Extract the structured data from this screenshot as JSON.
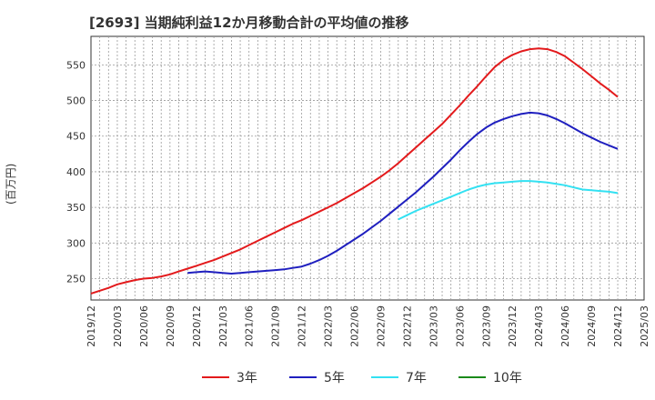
{
  "chart_data": {
    "type": "line",
    "title": "[2693]  当期純利益12か月移動合計の平均値の推移",
    "ylabel": "(百万円)",
    "xlabel": "",
    "ylim": [
      220,
      590
    ],
    "xlim": [
      "2019/12",
      "2025/03"
    ],
    "y_ticks": [
      250,
      300,
      350,
      400,
      450,
      500,
      550
    ],
    "x_ticks": [
      "2019/12",
      "2020/03",
      "2020/06",
      "2020/09",
      "2020/12",
      "2021/03",
      "2021/06",
      "2021/09",
      "2021/12",
      "2022/03",
      "2022/06",
      "2022/09",
      "2022/12",
      "2023/03",
      "2023/06",
      "2023/09",
      "2023/12",
      "2024/03",
      "2024/06",
      "2024/09",
      "2024/12",
      "2025/03"
    ],
    "grid": true,
    "legend_position": "bottom",
    "series": [
      {
        "name": "3年",
        "color": "#e31a1c",
        "x": [
          "2019/12",
          "2020/01",
          "2020/02",
          "2020/03",
          "2020/04",
          "2020/05",
          "2020/06",
          "2020/07",
          "2020/08",
          "2020/09",
          "2020/10",
          "2020/11",
          "2020/12",
          "2021/01",
          "2021/02",
          "2021/03",
          "2021/04",
          "2021/05",
          "2021/06",
          "2021/07",
          "2021/08",
          "2021/09",
          "2021/10",
          "2021/11",
          "2021/12",
          "2022/01",
          "2022/02",
          "2022/03",
          "2022/04",
          "2022/05",
          "2022/06",
          "2022/07",
          "2022/08",
          "2022/09",
          "2022/10",
          "2022/11",
          "2022/12",
          "2023/01",
          "2023/02",
          "2023/03",
          "2023/04",
          "2023/05",
          "2023/06",
          "2023/07",
          "2023/08",
          "2023/09",
          "2023/10",
          "2023/11",
          "2023/12",
          "2024/01",
          "2024/02",
          "2024/03",
          "2024/04",
          "2024/05",
          "2024/06",
          "2024/07",
          "2024/08",
          "2024/09",
          "2024/10",
          "2024/11",
          "2024/12"
        ],
        "values": [
          229,
          233,
          237,
          242,
          245,
          248,
          250,
          251,
          253,
          256,
          260,
          264,
          268,
          272,
          276,
          281,
          286,
          291,
          297,
          303,
          309,
          315,
          321,
          327,
          332,
          338,
          344,
          350,
          356,
          363,
          370,
          377,
          385,
          393,
          402,
          412,
          423,
          434,
          445,
          456,
          467,
          480,
          493,
          507,
          520,
          534,
          547,
          557,
          564,
          569,
          572,
          573,
          572,
          568,
          562,
          553,
          544,
          534,
          524,
          515,
          505
        ]
      },
      {
        "name": "5年",
        "color": "#1f1fbf",
        "x": [
          "2020/11",
          "2020/12",
          "2021/01",
          "2021/02",
          "2021/03",
          "2021/04",
          "2021/05",
          "2021/06",
          "2021/07",
          "2021/08",
          "2021/09",
          "2021/10",
          "2021/11",
          "2021/12",
          "2022/01",
          "2022/02",
          "2022/03",
          "2022/04",
          "2022/05",
          "2022/06",
          "2022/07",
          "2022/08",
          "2022/09",
          "2022/10",
          "2022/11",
          "2022/12",
          "2023/01",
          "2023/02",
          "2023/03",
          "2023/04",
          "2023/05",
          "2023/06",
          "2023/07",
          "2023/08",
          "2023/09",
          "2023/10",
          "2023/11",
          "2023/12",
          "2024/01",
          "2024/02",
          "2024/03",
          "2024/04",
          "2024/05",
          "2024/06",
          "2024/07",
          "2024/08",
          "2024/09",
          "2024/10",
          "2024/11",
          "2024/12"
        ],
        "values": [
          258,
          259,
          260,
          259,
          258,
          257,
          258,
          259,
          260,
          261,
          262,
          263,
          265,
          267,
          271,
          276,
          282,
          289,
          297,
          305,
          313,
          322,
          331,
          341,
          351,
          361,
          371,
          382,
          393,
          405,
          417,
          430,
          442,
          453,
          462,
          469,
          474,
          478,
          481,
          483,
          482,
          479,
          474,
          468,
          461,
          454,
          448,
          442,
          437,
          432
        ]
      },
      {
        "name": "7年",
        "color": "#33e1f2",
        "x": [
          "2022/11",
          "2022/12",
          "2023/01",
          "2023/02",
          "2023/03",
          "2023/04",
          "2023/05",
          "2023/06",
          "2023/07",
          "2023/08",
          "2023/09",
          "2023/10",
          "2023/11",
          "2023/12",
          "2024/01",
          "2024/02",
          "2024/03",
          "2024/04",
          "2024/05",
          "2024/06",
          "2024/07",
          "2024/08",
          "2024/09",
          "2024/10",
          "2024/11",
          "2024/12"
        ],
        "values": [
          333,
          339,
          345,
          350,
          355,
          360,
          365,
          370,
          375,
          379,
          382,
          384,
          385,
          386,
          387,
          387,
          386,
          385,
          383,
          381,
          378,
          375,
          374,
          373,
          372,
          370
        ]
      },
      {
        "name": "10年",
        "color": "#1a8a1a",
        "x": [],
        "values": []
      }
    ]
  }
}
